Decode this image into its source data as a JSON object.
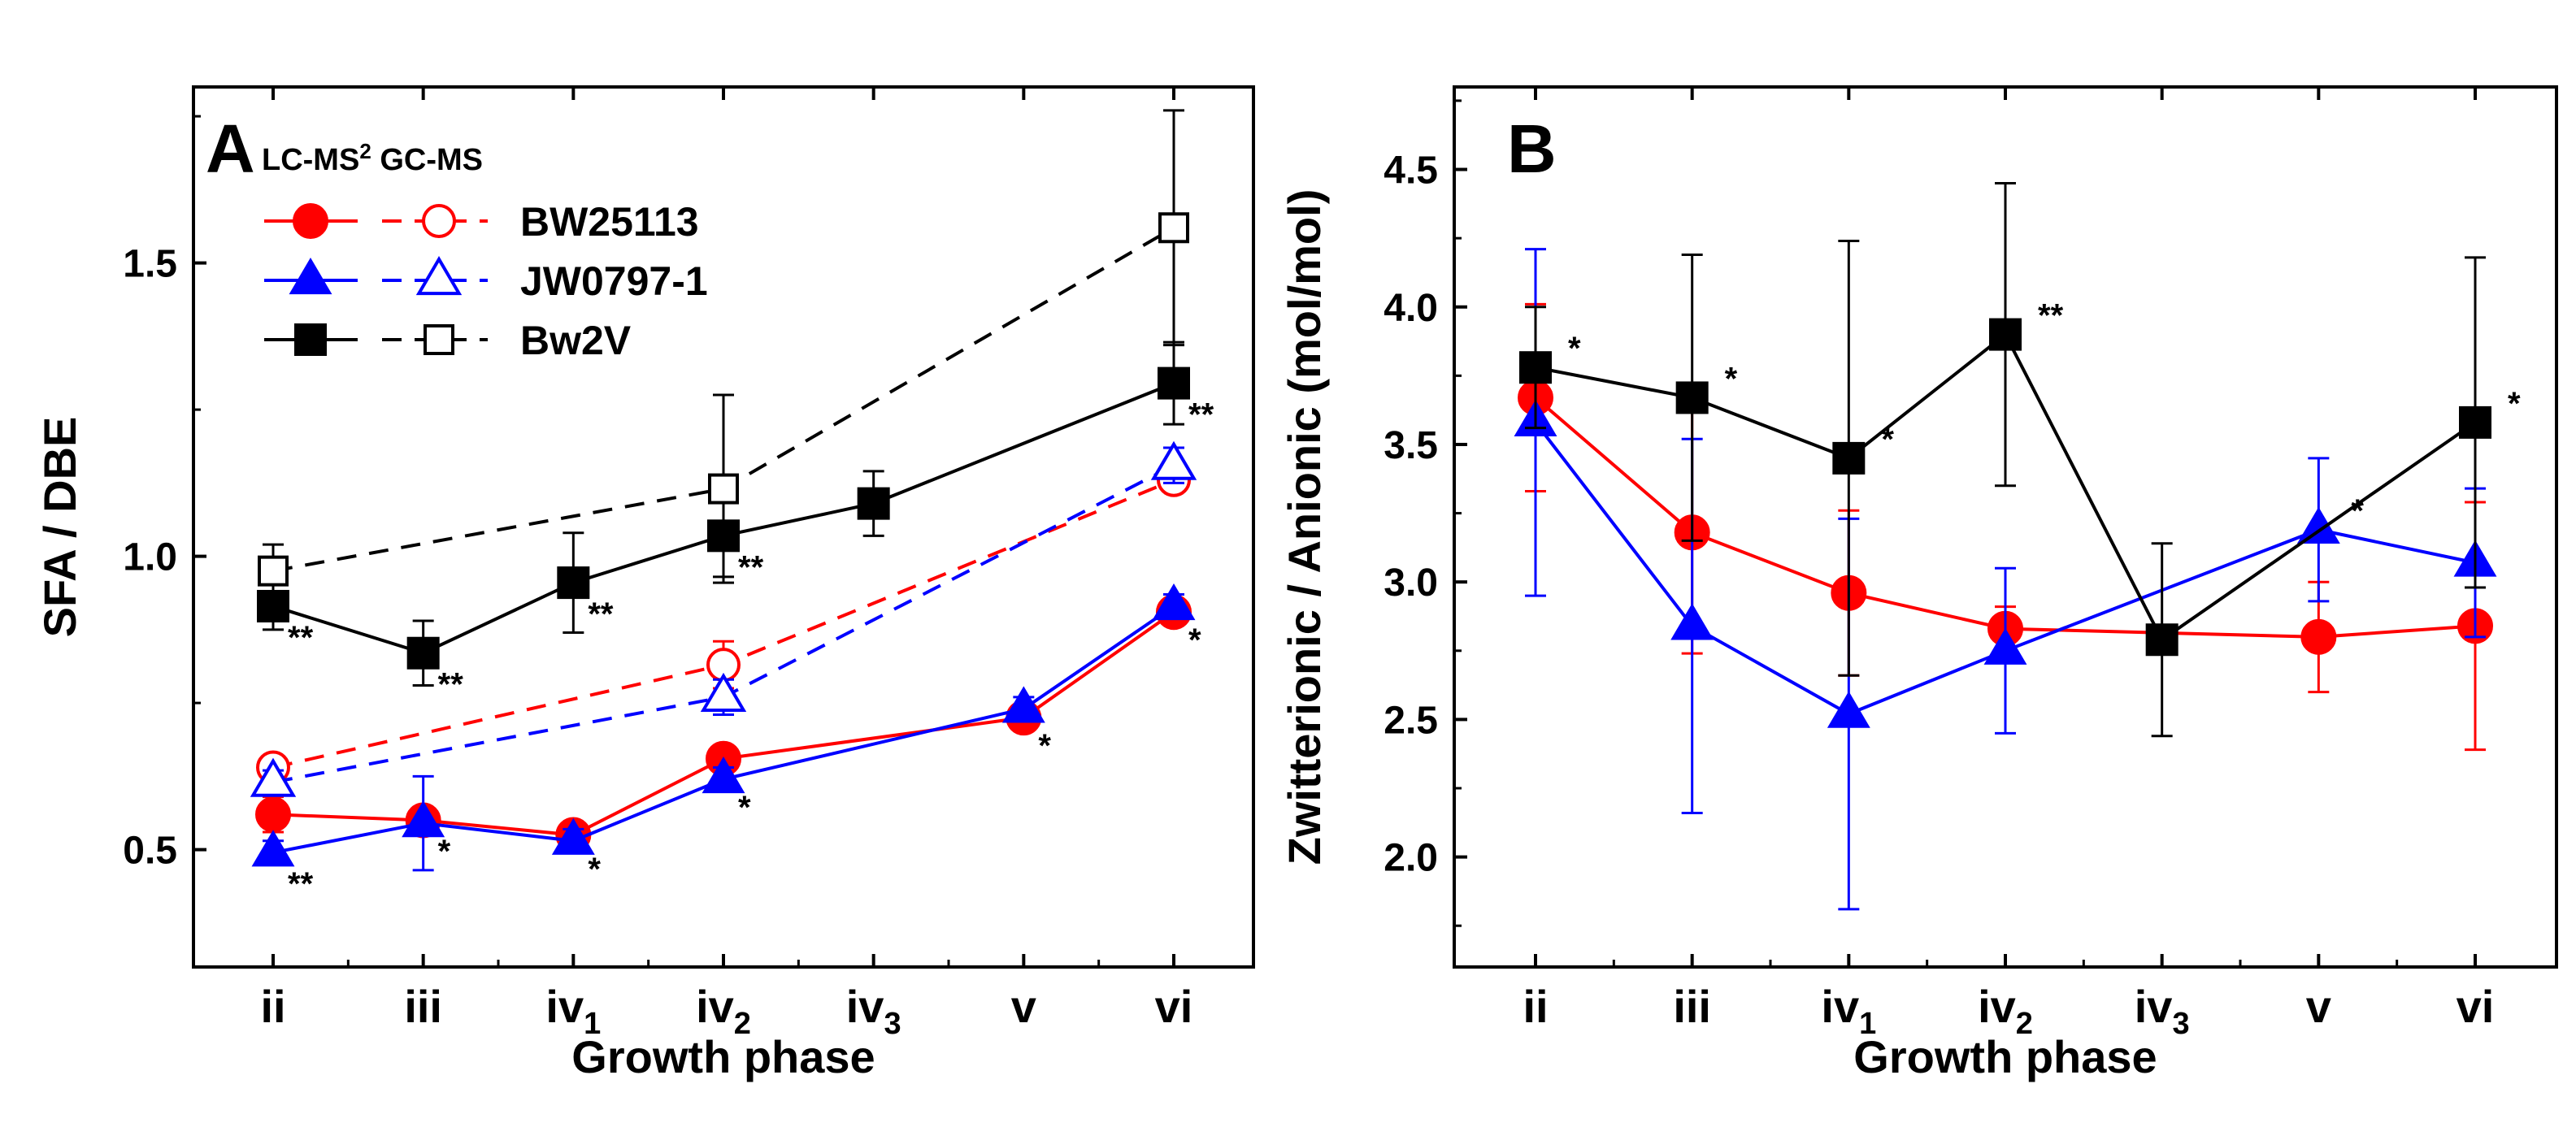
{
  "chart_data": [
    {
      "type": "line",
      "panel_label": "A",
      "xlabel": "Growth phase",
      "ylabel": "SFA / DBE",
      "categories": [
        {
          "base": "ii",
          "sub": ""
        },
        {
          "base": "iii",
          "sub": ""
        },
        {
          "base": "iv",
          "sub": "1"
        },
        {
          "base": "iv",
          "sub": "2"
        },
        {
          "base": "iv",
          "sub": "3"
        },
        {
          "base": "v",
          "sub": ""
        },
        {
          "base": "vi",
          "sub": ""
        }
      ],
      "ylim": [
        0.3,
        1.8
      ],
      "yticks": [
        0.5,
        1.0,
        1.5
      ],
      "ytick_labels": [
        "0.5",
        "1.0",
        "1.5"
      ],
      "legend": {
        "header_lc": "LC-MS",
        "header_lc_sup": "2",
        "header_gc": "GC-MS",
        "entries": [
          "BW25113",
          "JW0797-1",
          "Bw2V"
        ]
      },
      "series": [
        {
          "name": "BW25113",
          "method": "LC-MS2",
          "color": "#ff0000",
          "marker": "circle",
          "filled": true,
          "dashed": false,
          "points": [
            {
              "i": 0,
              "y": 0.56,
              "err": 0.03
            },
            {
              "i": 1,
              "y": 0.55,
              "err": 0.02
            },
            {
              "i": 2,
              "y": 0.525,
              "err": 0.02
            },
            {
              "i": 3,
              "y": 0.655,
              "err": 0.02
            },
            {
              "i": 5,
              "y": 0.725,
              "err": 0.02
            },
            {
              "i": 6,
              "y": 0.905,
              "err": 0.02
            }
          ]
        },
        {
          "name": "JW0797-1",
          "method": "LC-MS2",
          "color": "#0000ff",
          "marker": "triangle",
          "filled": true,
          "dashed": false,
          "points": [
            {
              "i": 0,
              "y": 0.495,
              "err": 0.02
            },
            {
              "i": 1,
              "y": 0.545,
              "err": 0.08
            },
            {
              "i": 2,
              "y": 0.515,
              "err": 0.02
            },
            {
              "i": 3,
              "y": 0.62,
              "err": 0.02
            },
            {
              "i": 5,
              "y": 0.74,
              "err": 0.02
            },
            {
              "i": 6,
              "y": 0.915,
              "err": 0.02
            }
          ]
        },
        {
          "name": "Bw2V",
          "method": "LC-MS2",
          "color": "#000000",
          "marker": "square",
          "filled": true,
          "dashed": false,
          "points": [
            {
              "i": 0,
              "y": 0.915,
              "err": 0.04
            },
            {
              "i": 1,
              "y": 0.835,
              "err": 0.055
            },
            {
              "i": 2,
              "y": 0.955,
              "err": 0.085
            },
            {
              "i": 3,
              "y": 1.035,
              "err": 0.07
            },
            {
              "i": 4,
              "y": 1.09,
              "err": 0.055
            },
            {
              "i": 6,
              "y": 1.295,
              "err": 0.07
            }
          ]
        },
        {
          "name": "BW25113",
          "method": "GC-MS",
          "color": "#ff0000",
          "marker": "circle",
          "filled": false,
          "dashed": true,
          "points": [
            {
              "i": 0,
              "y": 0.64,
              "err": 0.02
            },
            {
              "i": 3,
              "y": 0.815,
              "err": 0.04
            },
            {
              "i": 6,
              "y": 1.13,
              "err": 0.02
            }
          ]
        },
        {
          "name": "JW0797-1",
          "method": "GC-MS",
          "color": "#0000ff",
          "marker": "triangle",
          "filled": false,
          "dashed": true,
          "points": [
            {
              "i": 0,
              "y": 0.615,
              "err": 0.02
            },
            {
              "i": 3,
              "y": 0.76,
              "err": 0.03
            },
            {
              "i": 6,
              "y": 1.155,
              "err": 0.03
            }
          ]
        },
        {
          "name": "Bw2V",
          "method": "GC-MS",
          "color": "#000000",
          "marker": "square",
          "filled": false,
          "dashed": true,
          "points": [
            {
              "i": 0,
              "y": 0.975,
              "err": 0.045
            },
            {
              "i": 3,
              "y": 1.115,
              "err": 0.16
            },
            {
              "i": 6,
              "y": 1.56,
              "err": 0.2
            }
          ]
        }
      ],
      "annotations": [
        {
          "i": 0,
          "y": 0.915,
          "text": "**"
        },
        {
          "i": 1,
          "y": 0.835,
          "text": "**"
        },
        {
          "i": 2,
          "y": 0.955,
          "text": "**"
        },
        {
          "i": 3,
          "y": 1.035,
          "text": "**"
        },
        {
          "i": 6,
          "y": 1.295,
          "text": "**"
        },
        {
          "i": 0,
          "y": 0.495,
          "text": "**"
        },
        {
          "i": 1,
          "y": 0.545,
          "text": "*"
        },
        {
          "i": 2,
          "y": 0.515,
          "text": "*"
        },
        {
          "i": 3,
          "y": 0.62,
          "text": "*"
        },
        {
          "i": 5,
          "y": 0.725,
          "text": "*"
        },
        {
          "i": 6,
          "y": 0.905,
          "text": "*"
        }
      ]
    },
    {
      "type": "line",
      "panel_label": "B",
      "xlabel": "Growth phase",
      "ylabel": "Zwitterionic / Anionic (mol/mol)",
      "categories": [
        {
          "base": "ii",
          "sub": ""
        },
        {
          "base": "iii",
          "sub": ""
        },
        {
          "base": "iv",
          "sub": "1"
        },
        {
          "base": "iv",
          "sub": "2"
        },
        {
          "base": "iv",
          "sub": "3"
        },
        {
          "base": "v",
          "sub": ""
        },
        {
          "base": "vi",
          "sub": ""
        }
      ],
      "ylim": [
        1.6,
        4.8
      ],
      "yticks": [
        2.0,
        2.5,
        3.0,
        3.5,
        4.0,
        4.5
      ],
      "ytick_labels": [
        "2.0",
        "2.5",
        "3.0",
        "3.5",
        "4.0",
        "4.5"
      ],
      "series": [
        {
          "name": "BW25113",
          "color": "#ff0000",
          "marker": "circle",
          "filled": true,
          "dashed": false,
          "points": [
            {
              "i": 0,
              "y": 3.67,
              "err": 0.34
            },
            {
              "i": 1,
              "y": 3.18,
              "err": 0.44
            },
            {
              "i": 2,
              "y": 2.96,
              "err": 0.3
            },
            {
              "i": 3,
              "y": 2.83,
              "err": 0.08
            },
            {
              "i": 5,
              "y": 2.8,
              "err": 0.2
            },
            {
              "i": 6,
              "y": 2.84,
              "err": 0.45
            }
          ]
        },
        {
          "name": "JW0797-1",
          "color": "#0000ff",
          "marker": "triangle",
          "filled": true,
          "dashed": false,
          "points": [
            {
              "i": 0,
              "y": 3.58,
              "err": 0.63
            },
            {
              "i": 1,
              "y": 2.84,
              "err": 0.68
            },
            {
              "i": 2,
              "y": 2.52,
              "err": 0.71
            },
            {
              "i": 3,
              "y": 2.75,
              "err": 0.3
            },
            {
              "i": 5,
              "y": 3.19,
              "err": 0.26
            },
            {
              "i": 6,
              "y": 3.07,
              "err": 0.27
            }
          ]
        },
        {
          "name": "Bw2V",
          "color": "#000000",
          "marker": "square",
          "filled": true,
          "dashed": false,
          "points": [
            {
              "i": 0,
              "y": 3.78,
              "err": 0.22
            },
            {
              "i": 1,
              "y": 3.67,
              "err": 0.52
            },
            {
              "i": 2,
              "y": 3.45,
              "err": 0.79
            },
            {
              "i": 3,
              "y": 3.9,
              "err": 0.55
            },
            {
              "i": 4,
              "y": 2.79,
              "err": 0.35
            },
            {
              "i": 6,
              "y": 3.58,
              "err": 0.6
            }
          ]
        }
      ],
      "annotations": [
        {
          "i": 0,
          "y": 3.78,
          "text": "*"
        },
        {
          "i": 1,
          "y": 3.67,
          "text": "*"
        },
        {
          "i": 2,
          "y": 3.45,
          "text": "*"
        },
        {
          "i": 3,
          "y": 3.9,
          "text": "**"
        },
        {
          "i": 5,
          "y": 3.19,
          "text": "*"
        },
        {
          "i": 6,
          "y": 3.58,
          "text": "*"
        }
      ]
    }
  ]
}
